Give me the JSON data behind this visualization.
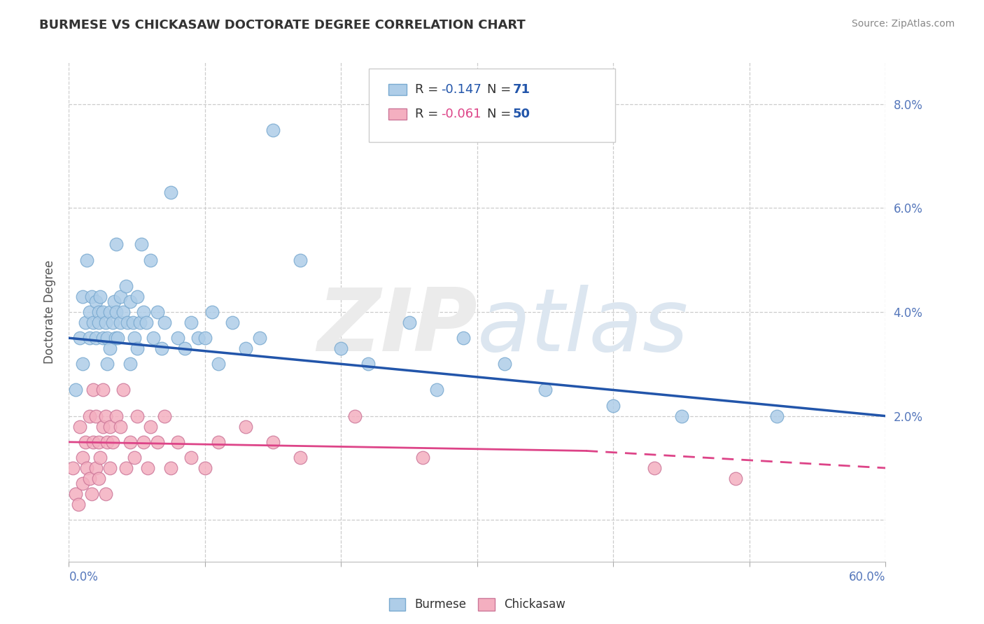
{
  "title": "BURMESE VS CHICKASAW DOCTORATE DEGREE CORRELATION CHART",
  "source": "Source: ZipAtlas.com",
  "ylabel": "Doctorate Degree",
  "burmese_R": -0.147,
  "burmese_N": 71,
  "chickasaw_R": -0.061,
  "chickasaw_N": 50,
  "burmese_color": "#aecde8",
  "burmese_edge_color": "#7aaad0",
  "burmese_line_color": "#2255aa",
  "chickasaw_color": "#f4afc0",
  "chickasaw_edge_color": "#cc7799",
  "chickasaw_line_color": "#dd4488",
  "xmin": 0.0,
  "xmax": 0.6,
  "ymin": -0.008,
  "ymax": 0.088,
  "burmese_x": [
    0.005,
    0.008,
    0.01,
    0.01,
    0.012,
    0.013,
    0.015,
    0.015,
    0.017,
    0.018,
    0.02,
    0.02,
    0.022,
    0.022,
    0.023,
    0.025,
    0.025,
    0.027,
    0.028,
    0.028,
    0.03,
    0.03,
    0.032,
    0.033,
    0.034,
    0.035,
    0.035,
    0.036,
    0.038,
    0.038,
    0.04,
    0.042,
    0.043,
    0.045,
    0.045,
    0.047,
    0.048,
    0.05,
    0.05,
    0.052,
    0.053,
    0.055,
    0.057,
    0.06,
    0.062,
    0.065,
    0.068,
    0.07,
    0.075,
    0.08,
    0.085,
    0.09,
    0.095,
    0.1,
    0.105,
    0.11,
    0.12,
    0.13,
    0.14,
    0.15,
    0.17,
    0.2,
    0.22,
    0.25,
    0.27,
    0.29,
    0.32,
    0.35,
    0.4,
    0.45,
    0.52
  ],
  "burmese_y": [
    0.025,
    0.035,
    0.03,
    0.043,
    0.038,
    0.05,
    0.04,
    0.035,
    0.043,
    0.038,
    0.042,
    0.035,
    0.04,
    0.038,
    0.043,
    0.04,
    0.035,
    0.038,
    0.035,
    0.03,
    0.04,
    0.033,
    0.038,
    0.042,
    0.035,
    0.04,
    0.053,
    0.035,
    0.043,
    0.038,
    0.04,
    0.045,
    0.038,
    0.042,
    0.03,
    0.038,
    0.035,
    0.043,
    0.033,
    0.038,
    0.053,
    0.04,
    0.038,
    0.05,
    0.035,
    0.04,
    0.033,
    0.038,
    0.063,
    0.035,
    0.033,
    0.038,
    0.035,
    0.035,
    0.04,
    0.03,
    0.038,
    0.033,
    0.035,
    0.075,
    0.05,
    0.033,
    0.03,
    0.038,
    0.025,
    0.035,
    0.03,
    0.025,
    0.022,
    0.02,
    0.02
  ],
  "chickasaw_x": [
    0.003,
    0.005,
    0.007,
    0.008,
    0.01,
    0.01,
    0.012,
    0.013,
    0.015,
    0.015,
    0.017,
    0.018,
    0.018,
    0.02,
    0.02,
    0.022,
    0.022,
    0.023,
    0.025,
    0.025,
    0.027,
    0.027,
    0.028,
    0.03,
    0.03,
    0.032,
    0.035,
    0.038,
    0.04,
    0.042,
    0.045,
    0.048,
    0.05,
    0.055,
    0.058,
    0.06,
    0.065,
    0.07,
    0.075,
    0.08,
    0.09,
    0.1,
    0.11,
    0.13,
    0.15,
    0.17,
    0.21,
    0.26,
    0.43,
    0.49
  ],
  "chickasaw_y": [
    0.01,
    0.005,
    0.003,
    0.018,
    0.012,
    0.007,
    0.015,
    0.01,
    0.008,
    0.02,
    0.005,
    0.015,
    0.025,
    0.01,
    0.02,
    0.015,
    0.008,
    0.012,
    0.025,
    0.018,
    0.005,
    0.02,
    0.015,
    0.01,
    0.018,
    0.015,
    0.02,
    0.018,
    0.025,
    0.01,
    0.015,
    0.012,
    0.02,
    0.015,
    0.01,
    0.018,
    0.015,
    0.02,
    0.01,
    0.015,
    0.012,
    0.01,
    0.015,
    0.018,
    0.015,
    0.012,
    0.02,
    0.012,
    0.01,
    0.008
  ]
}
